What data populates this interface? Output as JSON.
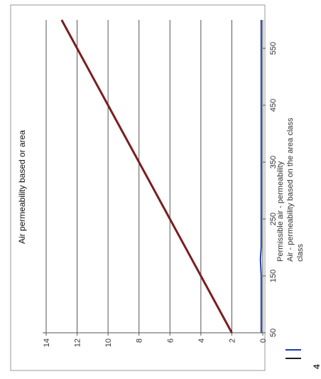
{
  "chart_data": {
    "type": "line",
    "title": "Air permeability based or area",
    "xlabel": "",
    "ylabel": "",
    "x_ticks": [
      50,
      150,
      250,
      350,
      450,
      550
    ],
    "y_ticks": [
      0,
      2,
      4,
      6,
      8,
      10,
      12,
      14
    ],
    "xlim": [
      50,
      600
    ],
    "ylim": [
      0,
      14
    ],
    "grid": "horizontal",
    "legend_position": "bottom",
    "series": [
      {
        "name": "Permissible air - permeability",
        "color": "#7a1f1f",
        "x": [
          50,
          150,
          250,
          350,
          450,
          550,
          600
        ],
        "y": [
          2.0,
          4.0,
          6.0,
          8.0,
          10.0,
          12.0,
          13.0
        ]
      },
      {
        "name": "Air - permeability based on the area class",
        "color": "#1f3fa8",
        "x": [
          50,
          150,
          180,
          200,
          250,
          350,
          450,
          550,
          600
        ],
        "y": [
          0.1,
          0.1,
          0.15,
          0.1,
          0.1,
          0.1,
          0.1,
          0.1,
          0.1
        ]
      }
    ]
  },
  "corner_label": "4"
}
